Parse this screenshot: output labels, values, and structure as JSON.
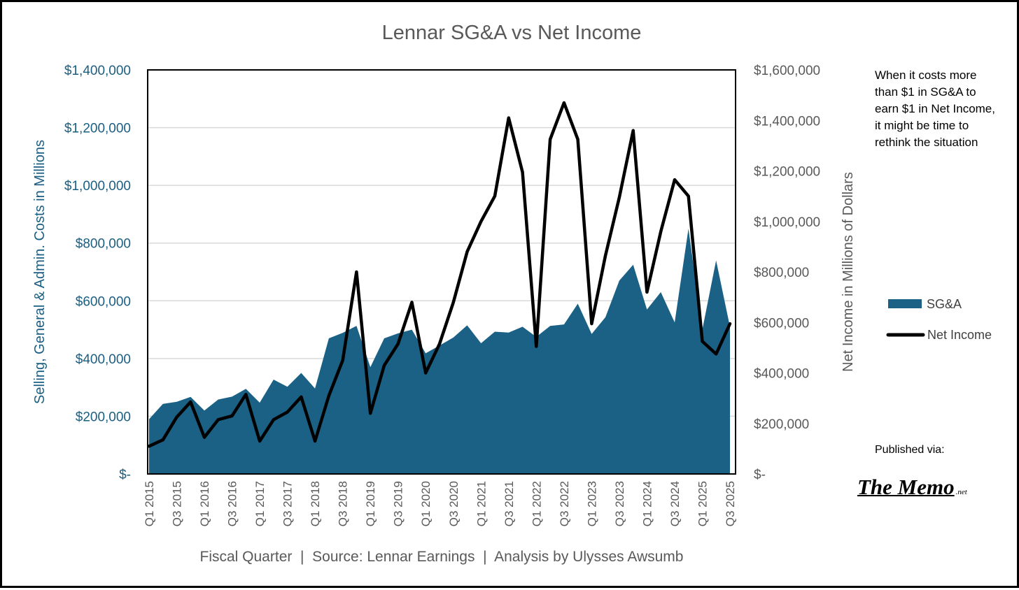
{
  "chart_data": {
    "type": "area+line",
    "title": "Lennar SG&A vs Net Income",
    "xlabel": "Fiscal Quarter  |  Source: Lennar Earnings  |  Analysis by Ulysses Awsumb",
    "ylabel_left": "Selling, General & Admin. Costs in Millions",
    "ylabel_right": "Net Income in Millions of Dollars",
    "ylim_left": [
      0,
      1400000
    ],
    "ylim_right": [
      0,
      1600000
    ],
    "yticks_left": [
      "$-",
      "$200,000",
      "$400,000",
      "$600,000",
      "$800,000",
      "$1,000,000",
      "$1,200,000",
      "$1,400,000"
    ],
    "yticks_right": [
      "$-",
      "$200,000",
      "$400,000",
      "$600,000",
      "$800,000",
      "$1,000,000",
      "$1,200,000",
      "$1,400,000",
      "$1,600,000"
    ],
    "categories": [
      "Q1 2015",
      "Q2 2015",
      "Q3 2015",
      "Q4 2015",
      "Q1 2016",
      "Q2 2016",
      "Q3 2016",
      "Q4 2016",
      "Q1 2017",
      "Q2 2017",
      "Q3 2017",
      "Q4 2017",
      "Q1 2018",
      "Q2 2018",
      "Q3 2018",
      "Q4 2018",
      "Q1 2019",
      "Q2 2019",
      "Q3 2019",
      "Q4 2019",
      "Q1 2020",
      "Q2 2020",
      "Q3 2020",
      "Q4 2020",
      "Q1 2021",
      "Q2 2021",
      "Q3 2021",
      "Q4 2021",
      "Q1 2022",
      "Q2 2022",
      "Q3 2022",
      "Q4 2022",
      "Q1 2023",
      "Q2 2023",
      "Q3 2023",
      "Q4 2023",
      "Q1 2024",
      "Q2 2024",
      "Q3 2024",
      "Q4 2024",
      "Q1 2025",
      "Q2 2025",
      "Q3 2025"
    ],
    "tick_labels": [
      "Q1 2015",
      "Q3 2015",
      "Q1 2016",
      "Q3 2016",
      "Q1 2017",
      "Q3 2017",
      "Q1 2018",
      "Q3 2018",
      "Q1 2019",
      "Q3 2019",
      "Q1 2020",
      "Q3 2020",
      "Q1 2021",
      "Q3 2021",
      "Q1 2022",
      "Q3 2022",
      "Q1 2023",
      "Q3 2023",
      "Q1 2024",
      "Q3 2024",
      "Q1 2025",
      "Q3 2025"
    ],
    "series": [
      {
        "name": "SG&A",
        "axis": "left",
        "type": "area",
        "color": "#1a6185",
        "values": [
          190000,
          243000,
          250000,
          267000,
          220000,
          258000,
          268000,
          295000,
          247000,
          327000,
          302000,
          350000,
          296000,
          470000,
          489000,
          513000,
          370000,
          470000,
          487000,
          500000,
          418000,
          445000,
          473000,
          515000,
          453000,
          493000,
          490000,
          510000,
          475000,
          513000,
          518000,
          590000,
          485000,
          543000,
          670000,
          725000,
          570000,
          630000,
          525000,
          850000,
          500000,
          740000,
          510000
        ]
      },
      {
        "name": "Net Income",
        "axis": "right",
        "type": "line",
        "color": "#000000",
        "values": [
          110000,
          135000,
          225000,
          285000,
          145000,
          215000,
          230000,
          315000,
          130000,
          215000,
          245000,
          305000,
          130000,
          310000,
          450000,
          800000,
          240000,
          430000,
          515000,
          680000,
          400000,
          515000,
          680000,
          880000,
          1000000,
          1100000,
          1410000,
          1195000,
          505000,
          1325000,
          1470000,
          1325000,
          595000,
          865000,
          1095000,
          1360000,
          720000,
          960000,
          1165000,
          1100000,
          525000,
          475000,
          595000
        ]
      }
    ],
    "legend": [
      {
        "label": "SG&A",
        "marker": "area"
      },
      {
        "label": "Net Income",
        "marker": "line"
      }
    ],
    "legend_position": "right",
    "grid": true
  },
  "annotation": "When it costs more than $1 in SG&A to earn $1 in Net Income, it might be time to rethink the situation",
  "published_label": "Published via:",
  "logo": {
    "main": "The Memo",
    "suffix": ".net"
  },
  "colors": {
    "accent": "#1a6185",
    "axis_text": "#1a5e82",
    "title": "#595959",
    "grid": "#d9d9d9"
  }
}
